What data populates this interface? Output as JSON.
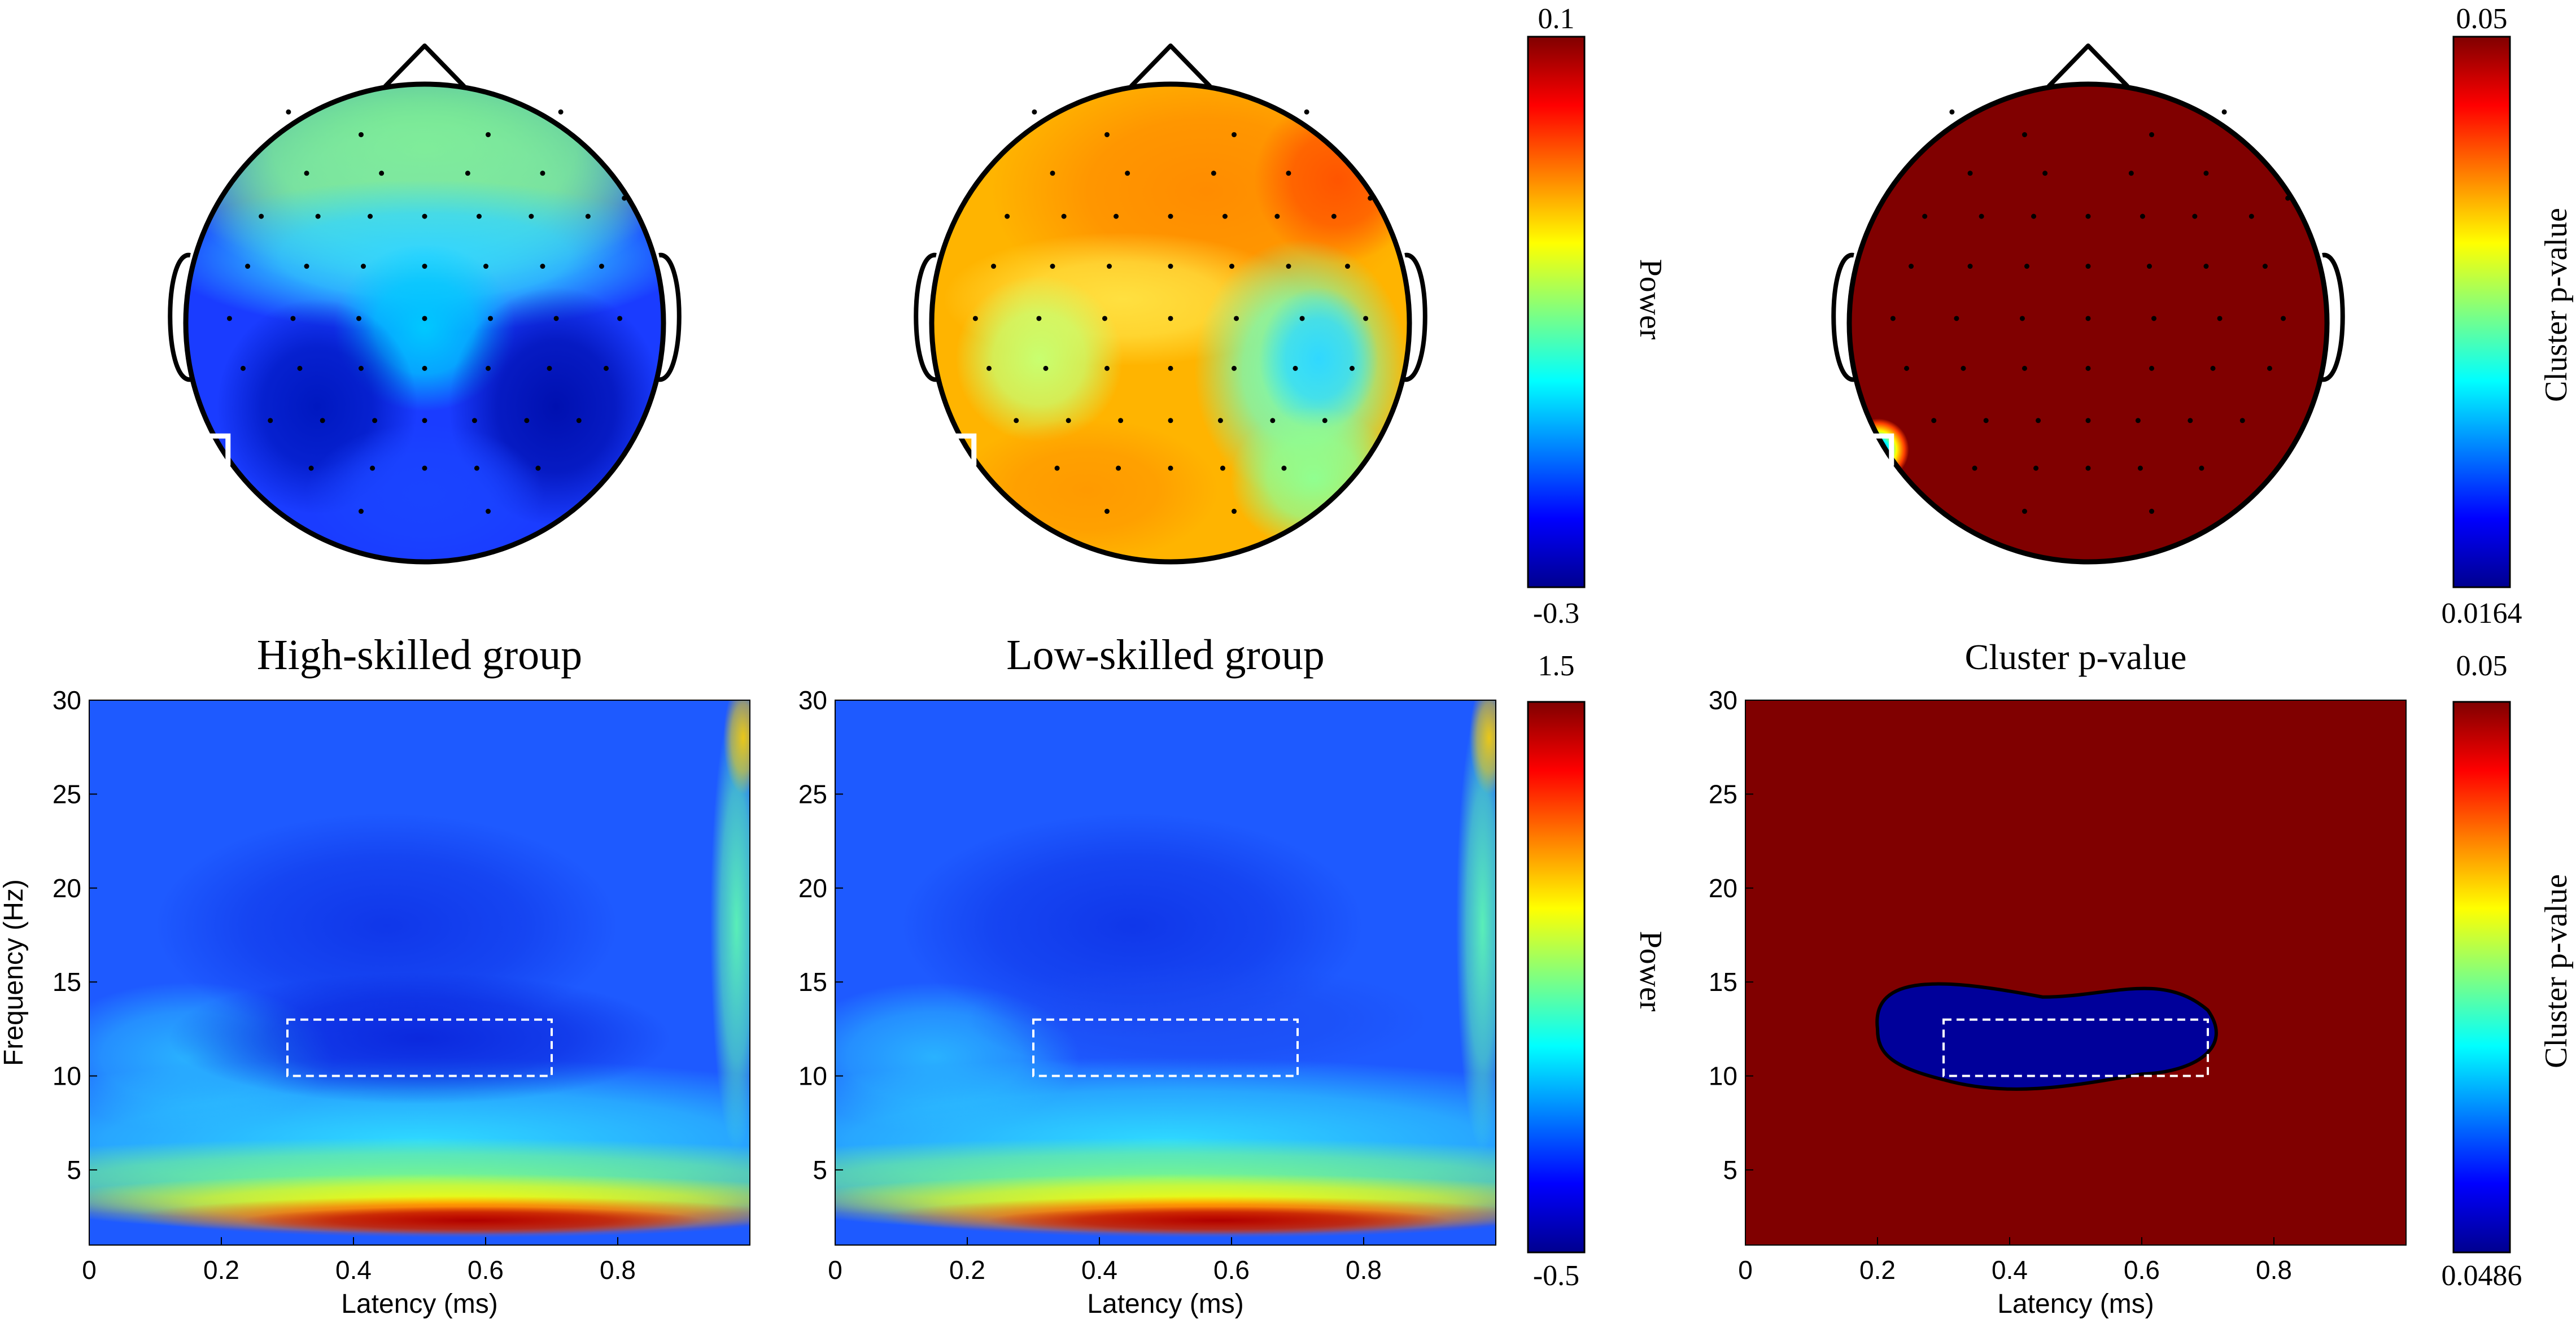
{
  "colormap_name": "jet",
  "colors": {
    "jet": [
      "#00008f",
      "#0000ff",
      "#0080ff",
      "#00ffff",
      "#80ff80",
      "#ffff00",
      "#ff8000",
      "#ff0000",
      "#800000"
    ],
    "outline": "#000000",
    "roi_box": "#ffffff",
    "cluster_bg": "#800000",
    "cluster_blob": "#00009a"
  },
  "colorbars": [
    {
      "id": "power-topo",
      "top": "0.1",
      "bottom": "-0.3",
      "label": "Power"
    },
    {
      "id": "pvalue-topo",
      "top": "0.05",
      "bottom": "0.0164",
      "label": "Cluster p-value"
    },
    {
      "id": "power-tf",
      "top": "1.5",
      "bottom": "-0.5",
      "label": "Power"
    },
    {
      "id": "pvalue-tf",
      "top": "0.05",
      "bottom": "0.0486",
      "label": "Cluster p-value"
    }
  ],
  "chart_data": [
    {
      "type": "heatmap",
      "title": "High-skilled group",
      "xlabel": "Latency (ms)",
      "ylabel": "Frequency (Hz)",
      "xlim": [
        0,
        1
      ],
      "ylim": [
        1,
        30
      ],
      "xticks": [
        "0",
        "0.2",
        "0.4",
        "0.6",
        "0.8"
      ],
      "yticks": [
        "30",
        "25",
        "20",
        "15",
        "10",
        "5"
      ],
      "roi": {
        "latency": [
          0.3,
          0.7
        ],
        "frequency": [
          10,
          13
        ]
      },
      "colorbar": {
        "min": -0.5,
        "max": 1.5,
        "label": "Power"
      }
    },
    {
      "type": "heatmap",
      "title": "Low-skilled group",
      "xlabel": "Latency (ms)",
      "ylabel": "",
      "xlim": [
        0,
        1
      ],
      "ylim": [
        1,
        30
      ],
      "xticks": [
        "0",
        "0.2",
        "0.4",
        "0.6",
        "0.8"
      ],
      "yticks": [
        "30",
        "25",
        "20",
        "15",
        "10",
        "5"
      ],
      "roi": {
        "latency": [
          0.3,
          0.7
        ],
        "frequency": [
          10,
          13
        ]
      },
      "colorbar": {
        "min": -0.5,
        "max": 1.5,
        "label": "Power"
      }
    },
    {
      "type": "heatmap",
      "title": "Cluster p-value",
      "xlabel": "Latency (ms)",
      "ylabel": "",
      "xlim": [
        0,
        1
      ],
      "ylim": [
        1,
        30
      ],
      "xticks": [
        "0",
        "0.2",
        "0.4",
        "0.6",
        "0.8"
      ],
      "yticks": [
        "30",
        "25",
        "20",
        "15",
        "10",
        "5"
      ],
      "roi": {
        "latency": [
          0.3,
          0.7
        ],
        "frequency": [
          10,
          13
        ]
      },
      "colorbar": {
        "min": 0.0486,
        "max": 0.05,
        "label": "Cluster p-value"
      }
    },
    {
      "type": "heatmap",
      "title": "",
      "note": "Scalp topography, high-skilled group",
      "colorbar": {
        "min": -0.3,
        "max": 0.1,
        "label": "Power"
      }
    },
    {
      "type": "heatmap",
      "title": "",
      "note": "Scalp topography, low-skilled group",
      "colorbar": {
        "min": -0.3,
        "max": 0.1,
        "label": "Power"
      }
    },
    {
      "type": "heatmap",
      "title": "",
      "note": "Scalp topography, cluster p-value",
      "colorbar": {
        "min": 0.0164,
        "max": 0.05,
        "label": "Cluster p-value"
      }
    }
  ]
}
